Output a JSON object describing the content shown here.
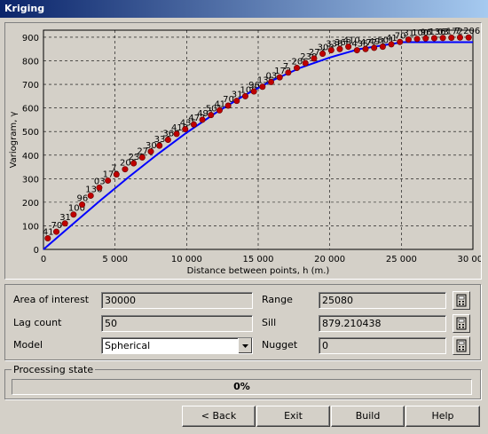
{
  "window": {
    "title": "Kriging"
  },
  "chart_data": {
    "type": "scatter",
    "xlabel": "Distance between points, h (m.)",
    "ylabel": "Variogram, γ",
    "xlim": [
      0,
      30000
    ],
    "ylim": [
      0,
      930
    ],
    "xticks": [
      "0",
      "5 000",
      "10 000",
      "15 000",
      "20 000",
      "25 000",
      "30 000"
    ],
    "xtick_values": [
      0,
      5000,
      10000,
      15000,
      20000,
      25000,
      30000
    ],
    "yticks": [
      "900",
      "800",
      "700",
      "600",
      "500",
      "400",
      "300",
      "200",
      "100",
      "0"
    ],
    "ytick_values": [
      900,
      800,
      700,
      600,
      500,
      400,
      300,
      200,
      100,
      0
    ],
    "grid": true,
    "point_labels": [
      "41",
      "70",
      "31",
      "100",
      "96",
      "136",
      "03",
      "172",
      "7",
      "206",
      "239",
      "274",
      "303",
      "336",
      "368",
      "410",
      "435",
      "477",
      "491",
      "501"
    ],
    "series": [
      {
        "type": "points",
        "x": [
          300,
          900,
          1500,
          2100,
          2700,
          3300,
          3900,
          4500,
          5100,
          5700,
          6300,
          6900,
          7500,
          8100,
          8700,
          9300,
          9900,
          10500,
          11100,
          11700,
          12300,
          12900,
          13500,
          14100,
          14700,
          15300,
          15900,
          16500,
          17100,
          17700,
          18300,
          18900,
          19500,
          20100,
          20700,
          21300,
          21900,
          22500,
          23100,
          23700,
          24300,
          24900,
          25500,
          26100,
          26700,
          27300,
          27900,
          28500,
          29100,
          29700
        ],
        "values": [
          47,
          75,
          110,
          148,
          190,
          228,
          262,
          292,
          318,
          340,
          365,
          390,
          415,
          440,
          465,
          490,
          510,
          530,
          550,
          570,
          590,
          610,
          630,
          650,
          670,
          690,
          710,
          730,
          750,
          770,
          790,
          810,
          830,
          845,
          850,
          860,
          845,
          850,
          855,
          860,
          870,
          880,
          890,
          893,
          895,
          896,
          897,
          898,
          899,
          899
        ]
      },
      {
        "type": "model",
        "x": [
          0,
          2000,
          4000,
          6000,
          8000,
          10000,
          12000,
          14000,
          16000,
          18000,
          20000,
          22000,
          25080,
          30000
        ],
        "values": [
          0,
          105,
          209,
          309,
          405,
          495,
          578,
          652,
          717,
          772,
          814,
          849,
          879,
          879
        ]
      }
    ]
  },
  "form": {
    "area_label": "Area of interest",
    "area_value": "30000",
    "lag_label": "Lag count",
    "lag_value": "50",
    "model_label": "Model",
    "model_value": "Spherical",
    "range_label": "Range",
    "range_value": "25080",
    "sill_label": "Sill",
    "sill_value": "879.210438",
    "nugget_label": "Nugget",
    "nugget_value": "0"
  },
  "processing": {
    "label": "Processing state",
    "progress_text": "0%",
    "progress": 0
  },
  "buttons": {
    "back": "< Back",
    "exit": "Exit",
    "build": "Build",
    "help": "Help"
  },
  "colors": {
    "points": "#c00000",
    "model": "#0000ff"
  },
  "icons": [
    "calculator-icon",
    "chevron-down-icon"
  ]
}
